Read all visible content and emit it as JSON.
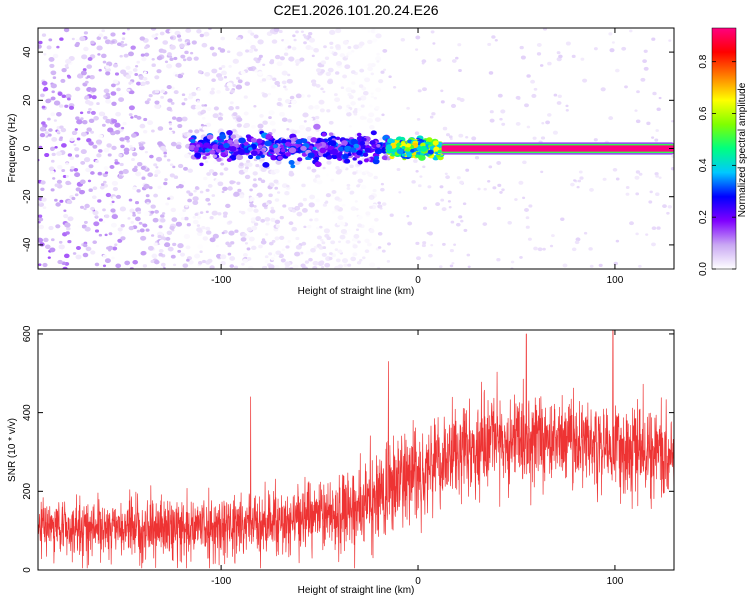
{
  "figure": {
    "title": "C2E1.2026.101.20.24.E26"
  },
  "chart_data": [
    {
      "type": "heatmap",
      "name": "spectrogram",
      "xlabel": "Height of straight line (km)",
      "ylabel": "Frequency (Hz)",
      "xlim": [
        -193,
        130
      ],
      "ylim": [
        -50,
        50
      ],
      "xticks": [
        -100,
        0,
        100
      ],
      "yticks": [
        -40,
        -20,
        0,
        20,
        40
      ],
      "colorbar": {
        "label": "Normalized spectral amplitude",
        "range": [
          0,
          0.93
        ],
        "ticks": [
          0.0,
          0.2,
          0.4,
          0.6,
          0.8
        ],
        "colormap": [
          "#ffffff",
          "#c9a8f3",
          "#8000ff",
          "#0000ff",
          "#00c8ff",
          "#00ff80",
          "#80ff00",
          "#ffff00",
          "#ff8000",
          "#ff0000",
          "#ff0080"
        ]
      },
      "features": [
        {
          "description_region": "noise",
          "x": [
            -193,
            -20
          ],
          "y": [
            -50,
            50
          ],
          "amplitude": [
            0.0,
            0.15
          ]
        },
        {
          "description_region": "band",
          "x": [
            -115,
            -15
          ],
          "y": [
            -5,
            5
          ],
          "amplitude": [
            0.1,
            0.35
          ]
        },
        {
          "description_region": "band",
          "x": [
            -15,
            12
          ],
          "y": [
            -3,
            3
          ],
          "amplitude": [
            0.3,
            0.7
          ]
        },
        {
          "description_region": "line",
          "x": [
            12,
            130
          ],
          "y": [
            -1.5,
            1.5
          ],
          "amplitude": [
            0.9,
            0.93
          ]
        }
      ],
      "grid": false
    },
    {
      "type": "line",
      "name": "snr",
      "xlabel": "Height of straight line (km)",
      "ylabel": "SNR (10 * v/v)",
      "xlim": [
        -193,
        130
      ],
      "ylim": [
        0,
        610
      ],
      "xticks": [
        -100,
        0,
        100
      ],
      "yticks": [
        0,
        200,
        400,
        600
      ],
      "color": "#ee3333",
      "envelope": {
        "x": [
          -193,
          -150,
          -100,
          -60,
          -30,
          -15,
          -5,
          10,
          30,
          60,
          90,
          115,
          130
        ],
        "mean": [
          110,
          105,
          110,
          130,
          160,
          200,
          240,
          270,
          310,
          340,
          320,
          300,
          290
        ],
        "spread": [
          50,
          50,
          55,
          60,
          70,
          90,
          90,
          80,
          80,
          80,
          80,
          80,
          80
        ]
      },
      "peaks": [
        {
          "x": 55,
          "y": 600
        },
        {
          "x": 99,
          "y": 610
        },
        {
          "x": -85,
          "y": 440
        },
        {
          "x": -15,
          "y": 530
        }
      ],
      "grid": false
    }
  ]
}
